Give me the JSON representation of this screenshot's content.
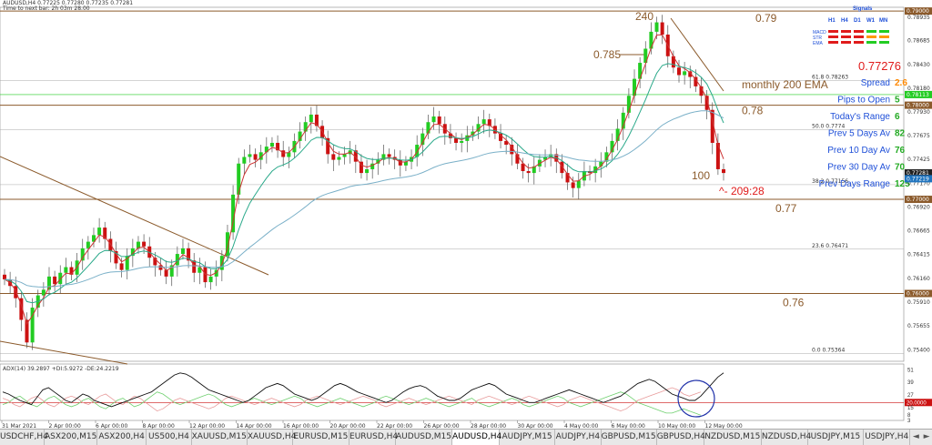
{
  "header": {
    "line1": "AUDUSD,H4  0.77225 0.77280 0.77235 0.77281",
    "line2": "Time to next bar: 2h 03m 28.00"
  },
  "chart_data": {
    "type": "candlestick",
    "symbol": "AUDUSD",
    "timeframe": "H4",
    "y_axis_labels": [
      "0.79000",
      "0.78935",
      "0.78685",
      "0.78430",
      "0.78180",
      "0.77930",
      "0.77675",
      "0.77425",
      "0.77170",
      "0.76920",
      "0.76665",
      "0.76415",
      "0.76160",
      "0.75910",
      "0.75655",
      "0.75400"
    ],
    "ylim": [
      0.7528,
      0.7904
    ],
    "price_tags": [
      {
        "value": "0.79000",
        "color": "#8b5a2b"
      },
      {
        "value": "0.78113",
        "color": "#22cc22"
      },
      {
        "value": "0.78000",
        "color": "#8b5a2b"
      },
      {
        "value": "0.77281",
        "color": "#222222"
      },
      {
        "value": "0.77219",
        "color": "#1e73be"
      },
      {
        "value": "0.77000",
        "color": "#8b5a2b"
      },
      {
        "value": "0.76000",
        "color": "#8b5a2b"
      }
    ],
    "x_axis_labels": [
      "31 Mar 2021",
      "2 Apr 00:00",
      "6 Apr 00:00",
      "8 Apr 00:00",
      "12 Apr 00:00",
      "14 Apr 00:00",
      "16 Apr 00:00",
      "20 Apr 00:00",
      "22 Apr 00:00",
      "26 Apr 00:00",
      "28 Apr 00:00",
      "30 Apr 00:00",
      "4 May 00:00",
      "6 May 00:00",
      "10 May 00:00",
      "12 May 00:00"
    ],
    "horizontal_levels": [
      {
        "value": 0.79,
        "label": "0.79",
        "color": "#8b5a2b"
      },
      {
        "value": 0.78,
        "label": "0.78",
        "color": "#8b5a2b"
      },
      {
        "value": 0.77,
        "label": "0.77",
        "color": "#8b5a2b"
      },
      {
        "value": 0.76,
        "label": "0.76",
        "color": "#8b5a2b"
      }
    ],
    "fib_levels": [
      {
        "value": 0.78263,
        "label": "61.8  0.78263"
      },
      {
        "value": 0.7774,
        "label": "50.0  0.7774"
      },
      {
        "value": 0.77156,
        "label": "38.2  0.77156"
      },
      {
        "value": 0.76471,
        "label": "23.6  0.76471"
      },
      {
        "value": 0.75364,
        "label": "0.0  0.75364"
      }
    ],
    "annotations": [
      "240",
      "0.785",
      "100",
      "monthly 200 EMA",
      "^- 209:28"
    ],
    "legend_panel": {
      "title": "Signals",
      "timeframes": [
        "H1",
        "H4",
        "D1",
        "W1",
        "MN"
      ],
      "rows": [
        {
          "name": "MACD",
          "colors": [
            "#e01b1b",
            "#e01b1b",
            "#e01b1b",
            "#22cc22",
            "#22cc22"
          ]
        },
        {
          "name": "STR",
          "colors": [
            "#e01b1b",
            "#e01b1b",
            "#e01b1b",
            "#ff9900",
            "#ff9900"
          ]
        },
        {
          "name": "EMA",
          "colors": [
            "#e01b1b",
            "#e01b1b",
            "#e01b1b",
            "#22cc22",
            "#22cc22"
          ]
        }
      ]
    },
    "info_panel": {
      "price": "0.77276",
      "rows": [
        {
          "label": "Spread",
          "value": "2.6",
          "value_color": "#ff8800"
        },
        {
          "label": "Pips to Open",
          "value": "5",
          "value_color": "#22aa22"
        },
        {
          "label": "Today's Range",
          "value": "6",
          "value_color": "#22aa22"
        },
        {
          "label": "Prev 5 Days Av",
          "value": "82",
          "value_color": "#22aa22"
        },
        {
          "label": "Prev 10 Day Av",
          "value": "76",
          "value_color": "#22aa22"
        },
        {
          "label": "Prev 30 Day Av",
          "value": "70",
          "value_color": "#22aa22"
        },
        {
          "label": "Prev Days Range",
          "value": "125",
          "value_color": "#22aa22"
        }
      ]
    },
    "price_path": [
      0.7615,
      0.7608,
      0.7595,
      0.7572,
      0.7548,
      0.7585,
      0.7598,
      0.7604,
      0.7618,
      0.761,
      0.7622,
      0.7628,
      0.762,
      0.7635,
      0.7648,
      0.7655,
      0.7662,
      0.767,
      0.7658,
      0.7645,
      0.7632,
      0.7625,
      0.764,
      0.7648,
      0.7655,
      0.765,
      0.7638,
      0.763,
      0.7625,
      0.7618,
      0.763,
      0.7642,
      0.7648,
      0.7635,
      0.7622,
      0.7628,
      0.7612,
      0.7618,
      0.7625,
      0.764,
      0.7665,
      0.7705,
      0.7738,
      0.7745,
      0.7748,
      0.7742,
      0.775,
      0.7756,
      0.776,
      0.7752,
      0.7745,
      0.775,
      0.7762,
      0.7772,
      0.7782,
      0.779,
      0.7778,
      0.7765,
      0.7748,
      0.7742,
      0.7745,
      0.7748,
      0.7752,
      0.774,
      0.7728,
      0.7732,
      0.7738,
      0.7742,
      0.7748,
      0.7745,
      0.7742,
      0.7736,
      0.774,
      0.7745,
      0.7758,
      0.777,
      0.7782,
      0.7788,
      0.778,
      0.777,
      0.7765,
      0.776,
      0.7762,
      0.7768,
      0.7772,
      0.778,
      0.7785,
      0.7778,
      0.777,
      0.7762,
      0.7758,
      0.7748,
      0.7738,
      0.773,
      0.7728,
      0.7735,
      0.7742,
      0.7745,
      0.7748,
      0.774,
      0.7728,
      0.7718,
      0.7712,
      0.772,
      0.773,
      0.7728,
      0.7735,
      0.774,
      0.775,
      0.7762,
      0.7775,
      0.7792,
      0.781,
      0.7828,
      0.7845,
      0.786,
      0.7878,
      0.7888,
      0.7875,
      0.7852,
      0.784,
      0.7832,
      0.7836,
      0.783,
      0.782,
      0.781,
      0.7795,
      0.776,
      0.7732,
      0.7728
    ],
    "adx_path": [
      30,
      28,
      25,
      22,
      20,
      18,
      25,
      32,
      34,
      30,
      26,
      22,
      20,
      24,
      28,
      26,
      22,
      20,
      18,
      16,
      18,
      20,
      22,
      24,
      26,
      28,
      30,
      34,
      38,
      42,
      46,
      48,
      47,
      44,
      40,
      36,
      32,
      30,
      28,
      26,
      24,
      22,
      20,
      22,
      26,
      30,
      34,
      36,
      38,
      36,
      32,
      28,
      26,
      24,
      22,
      24,
      28,
      32,
      36,
      38,
      36,
      33,
      30,
      28,
      26,
      24,
      22,
      20,
      22,
      26,
      30,
      33,
      35,
      36,
      34,
      30,
      26,
      24,
      22,
      22,
      24,
      28,
      32,
      34,
      36,
      38,
      36,
      32,
      28,
      26,
      24,
      22,
      20,
      20,
      22,
      24,
      26,
      28,
      30,
      32,
      30,
      28,
      26,
      24,
      22,
      20,
      22,
      24,
      26,
      30,
      34,
      38,
      40,
      42,
      40,
      36,
      32,
      28,
      26,
      24,
      22,
      22,
      26,
      32,
      38,
      44,
      48
    ],
    "plus_di_path": [
      18,
      20,
      24,
      26,
      22,
      18,
      16,
      20,
      24,
      26,
      22,
      18,
      16,
      18,
      22,
      24,
      20,
      16,
      14,
      18,
      22,
      24,
      20,
      16,
      18,
      22,
      26,
      30,
      28,
      24,
      20,
      18,
      20,
      22,
      24,
      26,
      28,
      26,
      22,
      18,
      16,
      18,
      20,
      22,
      24,
      22,
      20,
      18,
      20,
      22,
      24,
      26,
      24,
      20,
      18,
      16,
      18,
      20,
      22,
      24,
      22,
      20,
      18,
      16,
      18,
      20,
      24,
      26,
      24,
      22,
      20,
      18,
      20,
      22,
      24,
      22,
      20,
      18,
      16,
      18,
      20,
      22,
      24,
      20,
      18,
      16,
      18,
      20,
      22,
      24,
      22,
      18,
      16,
      18,
      20,
      22,
      24,
      26,
      24,
      20,
      18,
      16,
      18,
      20,
      22,
      24,
      26,
      28,
      30,
      28,
      24,
      20,
      18,
      16,
      14,
      12,
      10,
      10,
      12,
      14,
      12,
      10,
      8
    ],
    "minus_di_path": [
      24,
      22,
      18,
      16,
      20,
      24,
      26,
      22,
      18,
      16,
      20,
      24,
      26,
      24,
      20,
      18,
      22,
      26,
      28,
      24,
      20,
      18,
      22,
      26,
      24,
      20,
      16,
      12,
      14,
      18,
      22,
      24,
      22,
      20,
      18,
      16,
      14,
      16,
      20,
      24,
      26,
      24,
      22,
      20,
      18,
      20,
      22,
      24,
      22,
      20,
      18,
      16,
      18,
      22,
      24,
      26,
      24,
      22,
      20,
      18,
      20,
      22,
      24,
      26,
      24,
      22,
      18,
      16,
      18,
      20,
      22,
      24,
      22,
      20,
      18,
      20,
      22,
      24,
      26,
      24,
      22,
      20,
      18,
      22,
      24,
      26,
      24,
      22,
      20,
      18,
      20,
      24,
      26,
      24,
      22,
      20,
      18,
      16,
      18,
      22,
      24,
      26,
      24,
      22,
      20,
      18,
      16,
      14,
      12,
      14,
      18,
      22,
      24,
      26,
      28,
      30,
      32,
      34,
      32,
      28,
      26,
      28,
      30
    ],
    "adx_label": "ADX(14) 39.2897 +DI:5.9272 -DE:24.2219",
    "adx_axis_labels": [
      "51",
      "39",
      "27",
      "20.0000",
      "15",
      "8",
      "3"
    ]
  },
  "tabs": [
    "USDCHF,H4",
    "ASX200,M15",
    "ASX200,H4",
    "US500,H4",
    "XAUUSD,M15",
    "XAUUSD,H4",
    "EURUSD,M15",
    "EURUSD,H4",
    "AUDUSD,M15",
    "AUDUSD,H4",
    "AUDJPY,M15",
    "AUDJPY,H4",
    "GBPUSD,M15",
    "GBPUSD,H4",
    "NZDUSD,M15",
    "NZDUSD,H4",
    "USDJPY,M15",
    "USDJPY,H4"
  ],
  "active_tab": "AUDUSD,H4",
  "colors": {
    "bull": "#22cc22",
    "bear": "#cc1111",
    "level": "#8b5a2b",
    "ema200": "#7ab0c8",
    "fast": "#cc3333",
    "slow": "#2aa98a",
    "text_blue": "#1e4fd8",
    "price_red": "#e01b1b"
  }
}
